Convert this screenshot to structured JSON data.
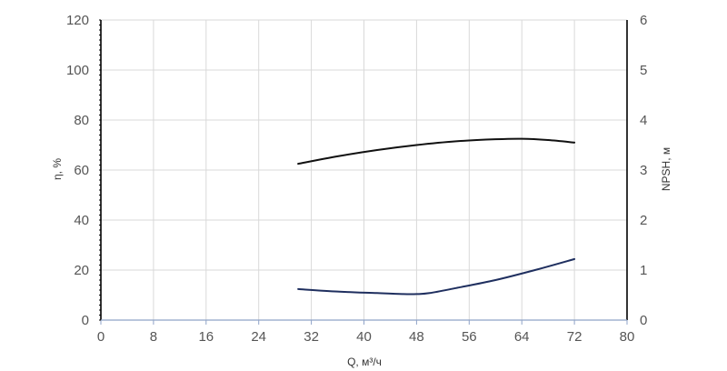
{
  "chart_data": {
    "type": "line",
    "title": "",
    "xlabel": "Q, м³/ч",
    "ylabel_left": "η, %",
    "ylabel_right": "NPSH, м",
    "x_ticks": [
      "0",
      "8",
      "16",
      "24",
      "32",
      "40",
      "48",
      "56",
      "64",
      "72",
      "80"
    ],
    "y_left_ticks": [
      "0",
      "20",
      "40",
      "60",
      "80",
      "100",
      "120"
    ],
    "y_right_ticks": [
      "0",
      "1",
      "2",
      "3",
      "4",
      "5",
      "6"
    ],
    "xlim": [
      0,
      80
    ],
    "ylim_left": [
      0,
      120
    ],
    "ylim_right": [
      0,
      6
    ],
    "grid": true,
    "series": [
      {
        "axis": "left",
        "color": "#111111",
        "x": [
          30,
          36,
          42,
          48,
          54,
          60,
          64,
          68,
          72
        ],
        "y": [
          62.5,
          65.5,
          68,
          70,
          71.5,
          72.3,
          72.5,
          72,
          71
        ]
      },
      {
        "axis": "right",
        "color": "#1f2f5f",
        "x": [
          30,
          36,
          42,
          46,
          48,
          50,
          54,
          60,
          66,
          72
        ],
        "y": [
          0.62,
          0.57,
          0.54,
          0.52,
          0.52,
          0.54,
          0.64,
          0.8,
          1.0,
          1.22
        ]
      }
    ]
  }
}
